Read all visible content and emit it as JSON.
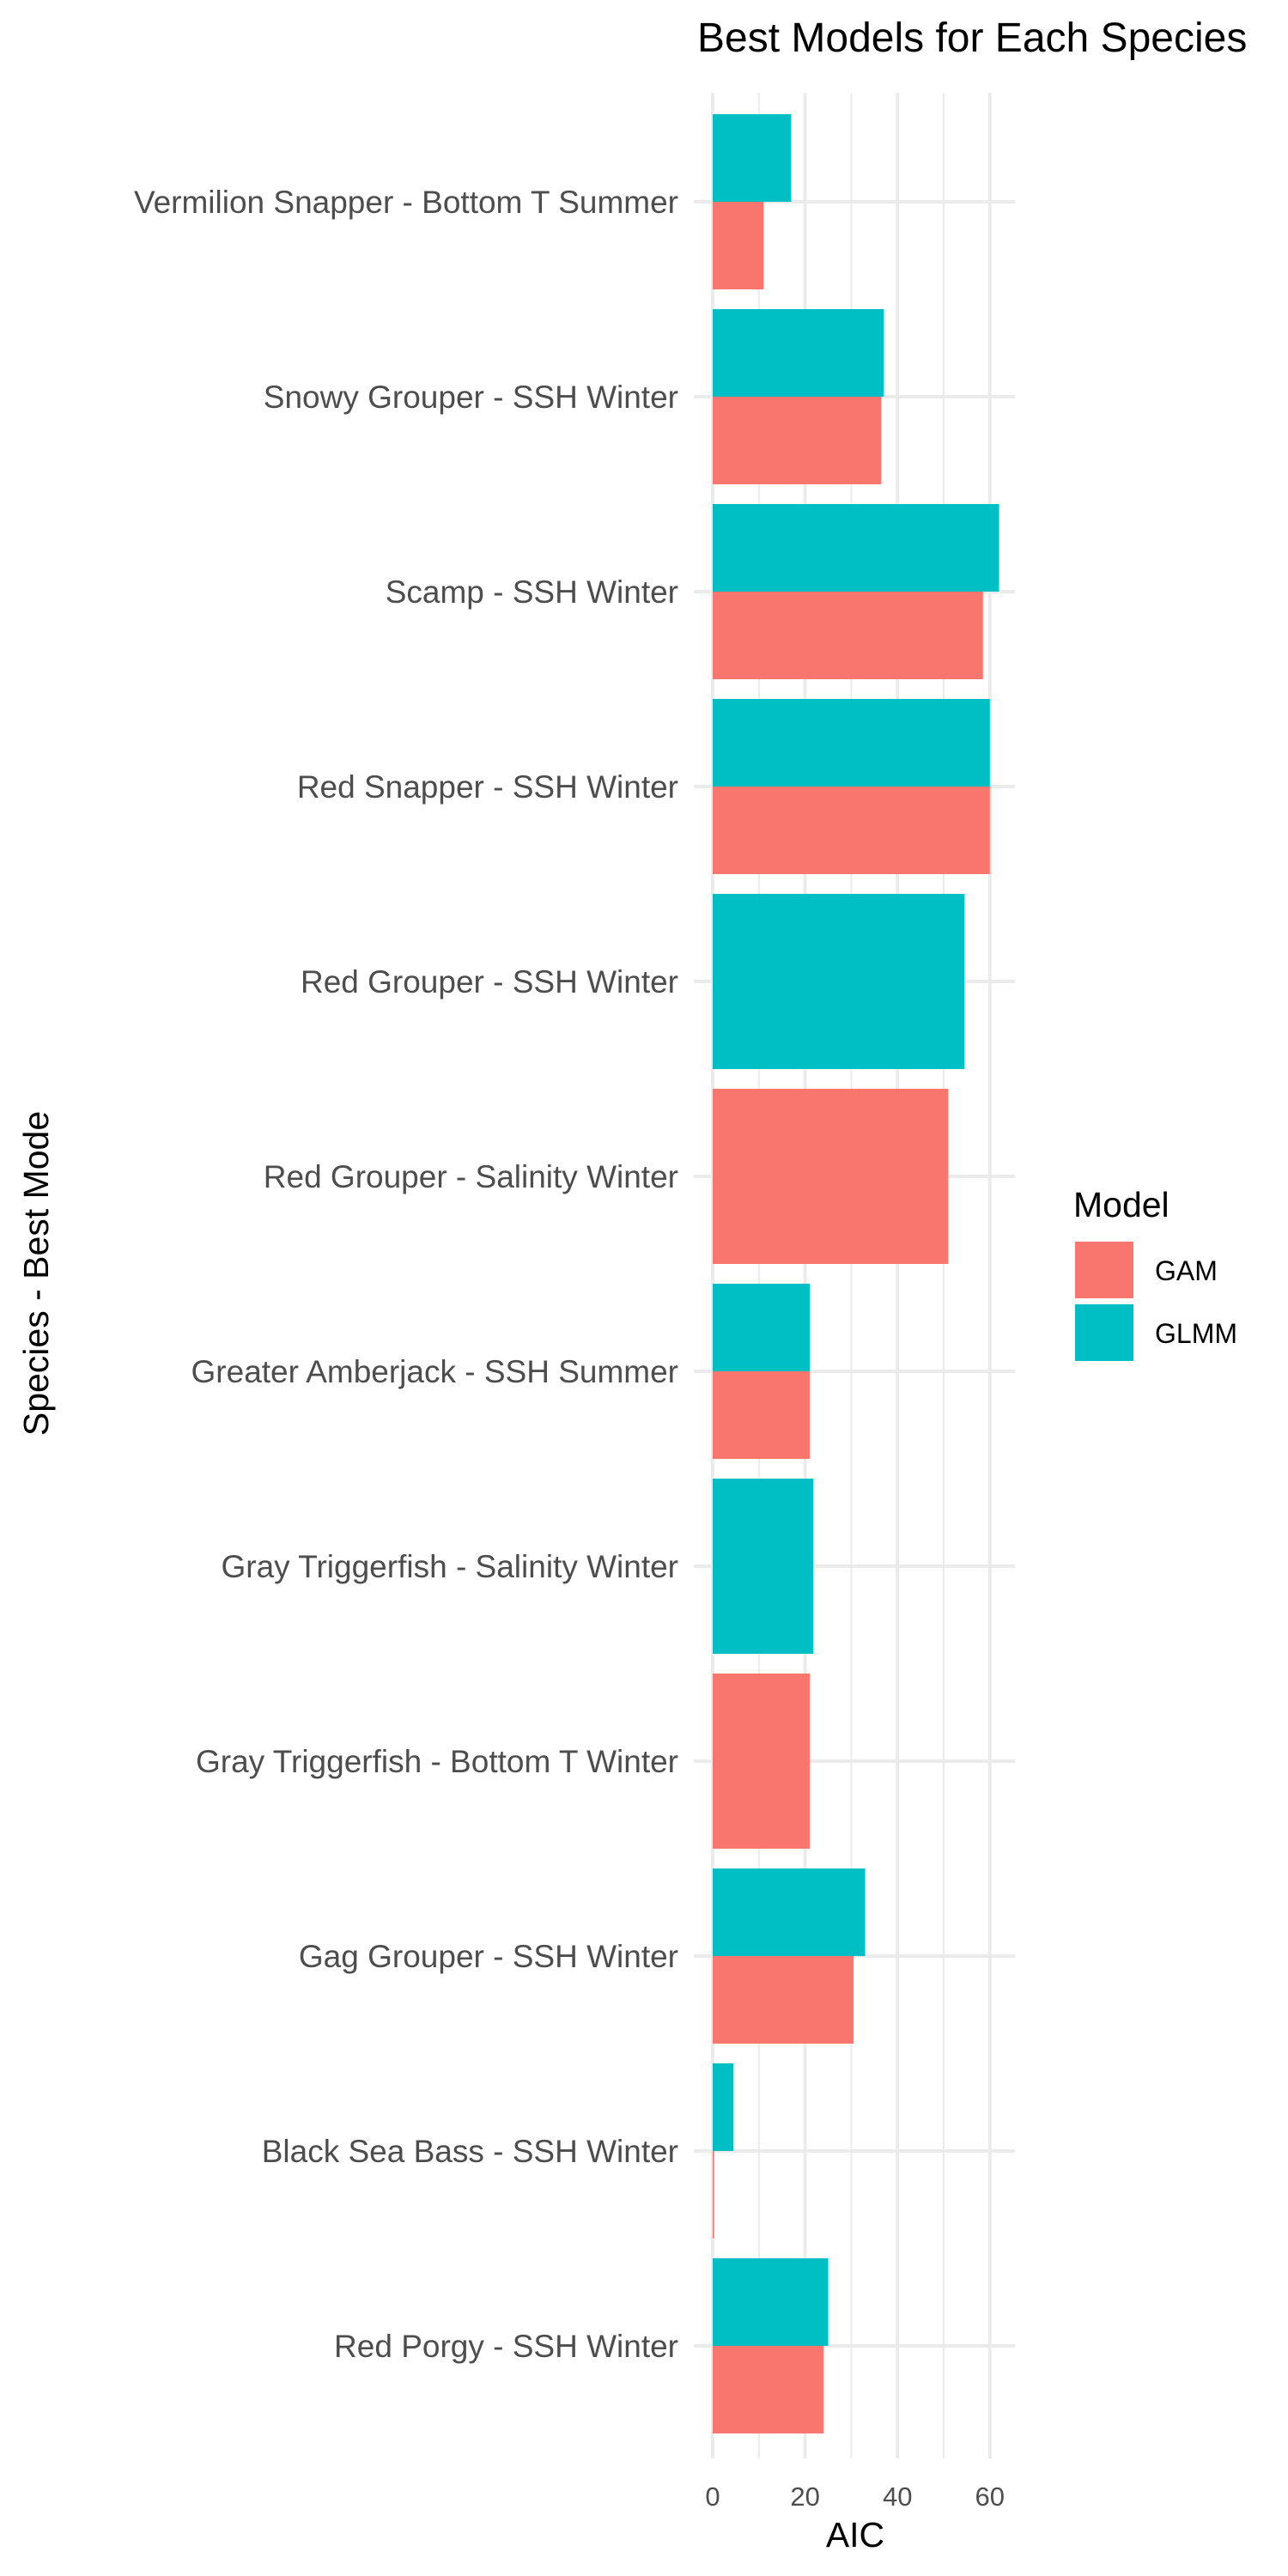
{
  "chart_data": {
    "type": "bar",
    "orientation": "horizontal",
    "title": "Best Models for Each Species",
    "xlabel": "AIC",
    "ylabel": "Species - Best Mode",
    "xlim": [
      0,
      65
    ],
    "xticks": [
      0,
      20,
      40,
      60
    ],
    "grid": true,
    "legend": {
      "title": "Model",
      "position": "right"
    },
    "categories": [
      "Vermilion Snapper - Bottom T Summer",
      "Snowy Grouper  - SSH Winter",
      "Scamp - SSH Winter",
      "Red Snapper - SSH Winter",
      "Red Grouper - SSH Winter",
      "Red Grouper - Salinity Winter",
      "Greater Amberjack - SSH Summer",
      "Gray Triggerfish - Salinity Winter",
      "Gray Triggerfish - Bottom T Winter",
      "Gag Grouper - SSH Winter",
      "Black Sea Bass - SSH Winter",
      "Red Porgy - SSH Winter"
    ],
    "series": [
      {
        "name": "GAM",
        "color": "#F8766D",
        "values": [
          11,
          36.5,
          58.5,
          60,
          null,
          51,
          21,
          null,
          21,
          30.5,
          0.3,
          24
        ]
      },
      {
        "name": "GLMM",
        "color": "#00BFC4",
        "values": [
          17,
          37,
          62,
          60,
          54.5,
          null,
          21,
          21.8,
          null,
          33,
          4.5,
          25
        ]
      }
    ]
  }
}
